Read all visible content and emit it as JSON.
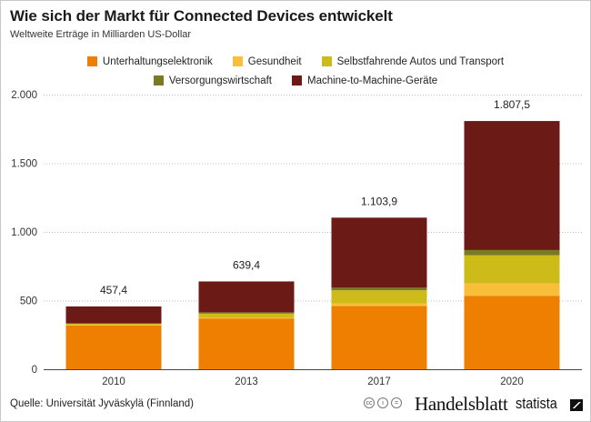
{
  "header": {
    "title": "Wie sich der Markt für Connected Devices entwickelt",
    "subtitle": "Weltweite Erträge in Milliarden US-Dollar"
  },
  "footer": {
    "source": "Quelle: Universität Jyväskylä (Finnland)",
    "publisher": "Handelsblatt",
    "brand": "statista",
    "license_icons": [
      "cc-icon",
      "by-icon",
      "nd-icon"
    ],
    "license_glyphs": [
      "cc",
      "i",
      "="
    ]
  },
  "chart_data": {
    "type": "bar",
    "stacked": true,
    "title": "Wie sich der Markt für Connected Devices entwickelt",
    "subtitle": "Weltweite Erträge in Milliarden US-Dollar",
    "xlabel": "",
    "ylabel": "",
    "categories": [
      "2010",
      "2013",
      "2017",
      "2020"
    ],
    "ylim": [
      0,
      2000
    ],
    "yticks": [
      0,
      500,
      1000,
      1500,
      2000
    ],
    "ytick_labels": [
      "0",
      "500",
      "1.000",
      "1.500",
      "2.000"
    ],
    "grid": true,
    "legend_position": "top-center",
    "totals": [
      457.4,
      639.4,
      1103.9,
      1807.5
    ],
    "total_labels": [
      "457,4",
      "639,4",
      "1.103,9",
      "1.807,5"
    ],
    "series": [
      {
        "name": "Unterhaltungselektronik",
        "color": "#ee7f00",
        "values": [
          320,
          370,
          460,
          535
        ]
      },
      {
        "name": "Gesundheit",
        "color": "#f9bf3b",
        "values": [
          3,
          5,
          20,
          90
        ]
      },
      {
        "name": "Selbstfahrende Autos und Transport",
        "color": "#cdbb1a",
        "values": [
          8,
          30,
          95,
          205
        ]
      },
      {
        "name": "Versorgungswirtschaft",
        "color": "#7a7a22",
        "values": [
          4,
          9.4,
          18.9,
          38
        ]
      },
      {
        "name": "Machine-to-Machine-Geräte",
        "color": "#6b1a16",
        "values": [
          122.4,
          225,
          510,
          939.5
        ]
      }
    ],
    "legend_rows": [
      [
        0,
        1,
        2
      ],
      [
        3,
        4
      ]
    ]
  }
}
